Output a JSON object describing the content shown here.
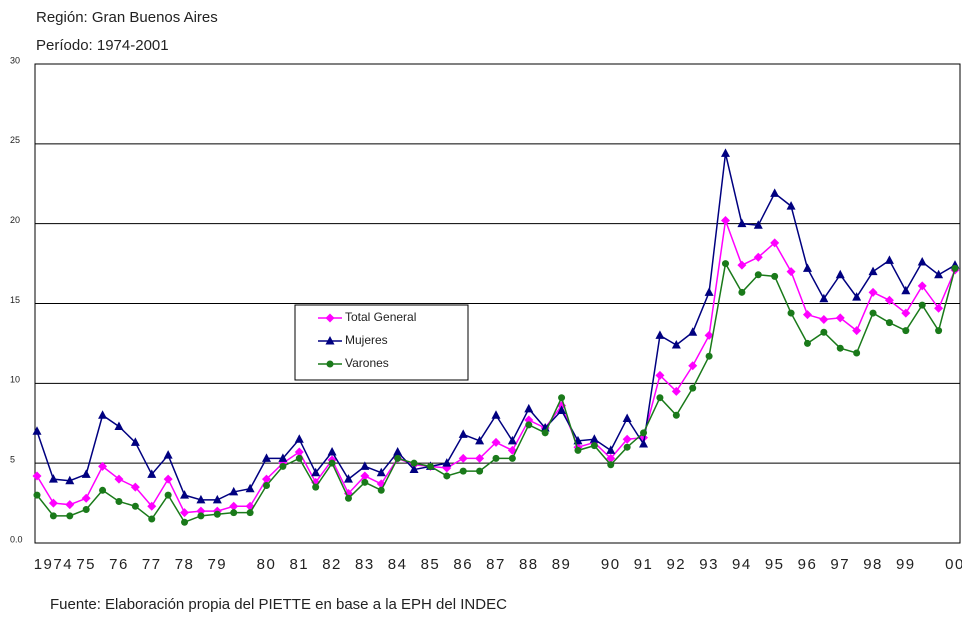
{
  "chart_data": {
    "type": "line",
    "title": "Región: Gran Buenos Aires",
    "subtitle": "Período: 1974-2001",
    "source": "Fuente: Elaboración propia del PIETTE  en base a la EPH del INDEC",
    "categories": [
      null,
      "1974",
      null,
      "75",
      null,
      "76",
      null,
      "77",
      null,
      "78",
      null,
      "79",
      null,
      null,
      "80",
      null,
      "81",
      null,
      "82",
      null,
      "83",
      null,
      "84",
      null,
      "85",
      null,
      "86",
      null,
      "87",
      null,
      "88",
      null,
      "89",
      null,
      null,
      "90",
      null,
      "91",
      null,
      "92",
      null,
      "93",
      null,
      "94",
      null,
      "95",
      null,
      "96",
      null,
      "97",
      null,
      "98",
      null,
      "99",
      null,
      null,
      "00"
    ],
    "series": [
      {
        "name": "Total General",
        "color": "#ff00ff",
        "marker": "diamond",
        "values": [
          4.2,
          2.5,
          2.4,
          2.8,
          4.8,
          4.0,
          3.5,
          2.3,
          4.0,
          1.9,
          2.0,
          2.0,
          2.3,
          2.3,
          4.0,
          5.0,
          5.7,
          3.8,
          5.2,
          3.1,
          4.2,
          3.7,
          5.3,
          4.9,
          4.8,
          4.7,
          5.3,
          5.3,
          6.3,
          5.8,
          7.7,
          7.2,
          8.6,
          6.0,
          6.3,
          5.3,
          6.5,
          6.6,
          10.5,
          9.5,
          11.1,
          13.0,
          20.2,
          17.4,
          17.9,
          18.8,
          17.0,
          14.3,
          14.0,
          14.1,
          13.3,
          15.7,
          15.2,
          14.4,
          16.1,
          14.7,
          17.1
        ]
      },
      {
        "name": "Mujeres",
        "color": "#000080",
        "marker": "triangle",
        "values": [
          7.0,
          4.0,
          3.9,
          4.3,
          8.0,
          7.3,
          6.3,
          4.3,
          5.5,
          3.0,
          2.7,
          2.7,
          3.2,
          3.4,
          5.3,
          5.3,
          6.5,
          4.4,
          5.7,
          4.0,
          4.8,
          4.4,
          5.7,
          4.6,
          4.8,
          5.0,
          6.8,
          6.4,
          8.0,
          6.4,
          8.4,
          7.2,
          8.3,
          6.4,
          6.5,
          5.8,
          7.8,
          6.2,
          13.0,
          12.4,
          13.2,
          15.7,
          24.4,
          20.0,
          19.9,
          21.9,
          21.1,
          17.2,
          15.3,
          16.8,
          15.4,
          17.0,
          17.7,
          15.8,
          17.6,
          16.8,
          17.4
        ]
      },
      {
        "name": "Varones",
        "color": "#1a7a1a",
        "marker": "circle",
        "values": [
          3.0,
          1.7,
          1.7,
          2.1,
          3.3,
          2.6,
          2.3,
          1.5,
          3.0,
          1.3,
          1.7,
          1.8,
          1.9,
          1.9,
          3.6,
          4.8,
          5.3,
          3.5,
          5.0,
          2.8,
          3.8,
          3.3,
          5.3,
          5.0,
          4.8,
          4.2,
          4.5,
          4.5,
          5.3,
          5.3,
          7.4,
          6.9,
          9.1,
          5.8,
          6.1,
          4.9,
          6.0,
          6.9,
          9.1,
          8.0,
          9.7,
          11.7,
          17.5,
          15.7,
          16.8,
          16.7,
          14.4,
          12.5,
          13.2,
          12.2,
          11.9,
          14.4,
          13.8,
          13.3,
          14.9,
          13.3,
          17.2
        ]
      }
    ],
    "ylim": [
      0,
      30
    ],
    "yticks": [
      {
        "value": 0,
        "label": "0.0"
      },
      5,
      10,
      15,
      20,
      25,
      30
    ],
    "grid": true,
    "legend": "center-left"
  }
}
